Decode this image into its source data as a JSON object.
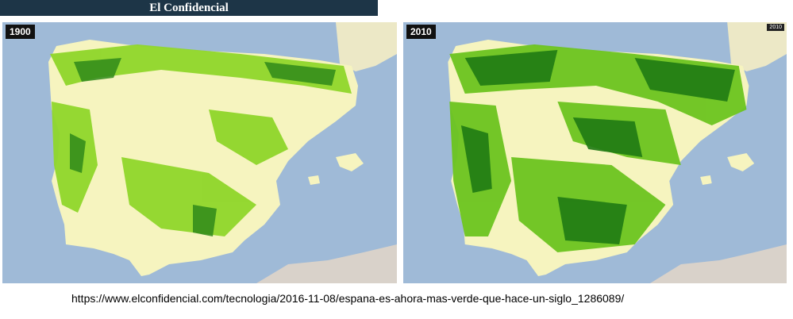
{
  "header": {
    "title": "El Confidencial"
  },
  "maps": [
    {
      "year": "1900"
    },
    {
      "year": "2010",
      "tag": "2010"
    }
  ],
  "source": {
    "url": "https://www.elconfidencial.com/tecnologia/2016-11-08/espana-es-ahora-mas-verde-que-hace-un-siglo_1286089/"
  }
}
